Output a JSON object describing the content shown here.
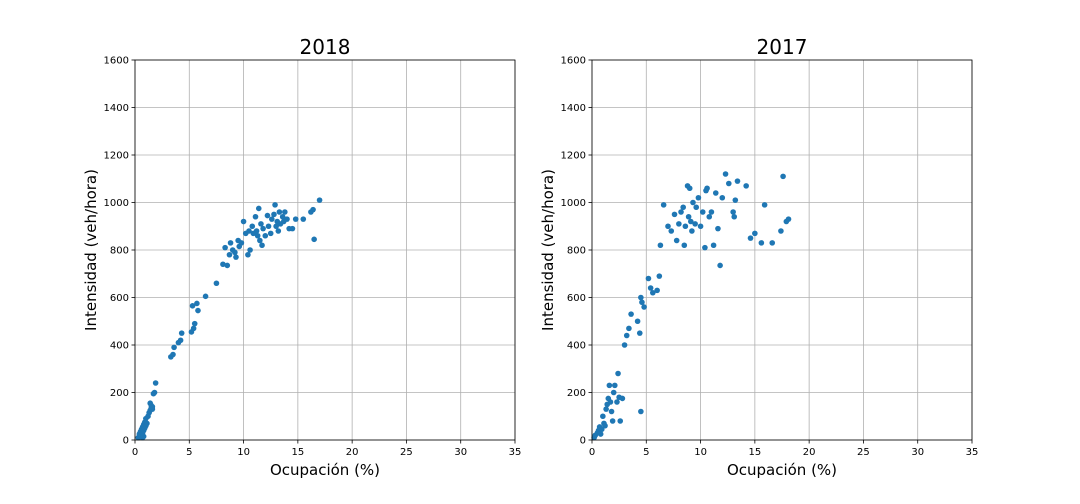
{
  "chart_data": [
    {
      "type": "scatter",
      "title": "2018",
      "xlabel": "Ocupación (%)",
      "ylabel": "Intensidad (veh/hora)",
      "xlim": [
        0,
        35
      ],
      "ylim": [
        0,
        1600
      ],
      "xticks": [
        "0",
        "5",
        "10",
        "15",
        "20",
        "25",
        "30",
        "35"
      ],
      "yticks": [
        "0",
        "200",
        "400",
        "600",
        "800",
        "1000",
        "1200",
        "1400",
        "1600"
      ],
      "grid": true,
      "color": "#1f77b4",
      "points": [
        [
          0.3,
          10
        ],
        [
          0.4,
          25
        ],
        [
          0.5,
          15
        ],
        [
          0.5,
          35
        ],
        [
          0.6,
          20
        ],
        [
          0.6,
          45
        ],
        [
          0.7,
          30
        ],
        [
          0.7,
          55
        ],
        [
          0.8,
          40
        ],
        [
          0.8,
          65
        ],
        [
          0.9,
          50
        ],
        [
          0.9,
          75
        ],
        [
          1.0,
          60
        ],
        [
          1.0,
          90
        ],
        [
          0.7,
          10
        ],
        [
          0.8,
          15
        ],
        [
          1.1,
          70
        ],
        [
          1.2,
          100
        ],
        [
          1.3,
          115
        ],
        [
          1.4,
          125
        ],
        [
          1.5,
          135
        ],
        [
          1.5,
          145
        ],
        [
          1.6,
          130
        ],
        [
          1.4,
          155
        ],
        [
          1.6,
          140
        ],
        [
          1.7,
          195
        ],
        [
          1.8,
          200
        ],
        [
          1.9,
          240
        ],
        [
          3.3,
          350
        ],
        [
          3.5,
          360
        ],
        [
          3.6,
          390
        ],
        [
          4.0,
          410
        ],
        [
          4.2,
          420
        ],
        [
          4.3,
          450
        ],
        [
          5.2,
          455
        ],
        [
          5.4,
          470
        ],
        [
          5.5,
          490
        ],
        [
          5.3,
          565
        ],
        [
          5.7,
          575
        ],
        [
          5.8,
          545
        ],
        [
          6.5,
          605
        ],
        [
          7.5,
          660
        ],
        [
          8.1,
          740
        ],
        [
          8.3,
          810
        ],
        [
          8.5,
          735
        ],
        [
          8.7,
          780
        ],
        [
          8.8,
          830
        ],
        [
          9.0,
          800
        ],
        [
          9.2,
          790
        ],
        [
          9.3,
          770
        ],
        [
          9.5,
          840
        ],
        [
          9.6,
          815
        ],
        [
          9.8,
          830
        ],
        [
          10.0,
          920
        ],
        [
          10.2,
          870
        ],
        [
          10.4,
          780
        ],
        [
          10.5,
          880
        ],
        [
          10.6,
          800
        ],
        [
          10.8,
          900
        ],
        [
          10.9,
          870
        ],
        [
          11.1,
          940
        ],
        [
          11.2,
          880
        ],
        [
          11.3,
          860
        ],
        [
          11.4,
          975
        ],
        [
          11.5,
          840
        ],
        [
          11.6,
          910
        ],
        [
          11.7,
          820
        ],
        [
          11.8,
          890
        ],
        [
          12.0,
          860
        ],
        [
          12.2,
          945
        ],
        [
          12.3,
          900
        ],
        [
          12.5,
          870
        ],
        [
          12.6,
          930
        ],
        [
          12.8,
          950
        ],
        [
          12.9,
          990
        ],
        [
          13.0,
          900
        ],
        [
          13.1,
          920
        ],
        [
          13.2,
          880
        ],
        [
          13.3,
          960
        ],
        [
          13.4,
          910
        ],
        [
          13.6,
          940
        ],
        [
          13.7,
          920
        ],
        [
          13.8,
          960
        ],
        [
          14.0,
          930
        ],
        [
          14.2,
          890
        ],
        [
          14.5,
          890
        ],
        [
          14.8,
          930
        ],
        [
          15.5,
          930
        ],
        [
          16.2,
          960
        ],
        [
          16.4,
          970
        ],
        [
          16.5,
          845
        ],
        [
          17.0,
          1010
        ]
      ]
    },
    {
      "type": "scatter",
      "title": "2017",
      "xlabel": "Ocupación (%)",
      "ylabel": "Intensidad (veh/hora)",
      "xlim": [
        0,
        35
      ],
      "ylim": [
        0,
        1600
      ],
      "xticks": [
        "0",
        "5",
        "10",
        "15",
        "20",
        "25",
        "30",
        "35"
      ],
      "yticks": [
        "0",
        "200",
        "400",
        "600",
        "800",
        "1000",
        "1200",
        "1400",
        "1600"
      ],
      "grid": true,
      "color": "#1f77b4",
      "points": [
        [
          0.2,
          10
        ],
        [
          0.3,
          20
        ],
        [
          0.5,
          30
        ],
        [
          0.6,
          40
        ],
        [
          0.7,
          55
        ],
        [
          0.8,
          25
        ],
        [
          0.9,
          45
        ],
        [
          1.0,
          100
        ],
        [
          1.1,
          70
        ],
        [
          1.2,
          60
        ],
        [
          1.3,
          130
        ],
        [
          1.4,
          150
        ],
        [
          1.5,
          175
        ],
        [
          1.6,
          230
        ],
        [
          1.7,
          160
        ],
        [
          1.8,
          120
        ],
        [
          1.9,
          80
        ],
        [
          2.0,
          200
        ],
        [
          2.1,
          230
        ],
        [
          2.3,
          160
        ],
        [
          2.4,
          280
        ],
        [
          2.5,
          180
        ],
        [
          2.6,
          80
        ],
        [
          2.8,
          175
        ],
        [
          3.0,
          400
        ],
        [
          3.2,
          440
        ],
        [
          3.4,
          470
        ],
        [
          3.6,
          530
        ],
        [
          4.2,
          500
        ],
        [
          4.4,
          450
        ],
        [
          4.5,
          600
        ],
        [
          4.6,
          580
        ],
        [
          4.8,
          560
        ],
        [
          4.5,
          120
        ],
        [
          5.2,
          680
        ],
        [
          5.4,
          640
        ],
        [
          5.6,
          620
        ],
        [
          6.0,
          630
        ],
        [
          6.2,
          690
        ],
        [
          6.3,
          820
        ],
        [
          6.6,
          990
        ],
        [
          7.0,
          900
        ],
        [
          7.3,
          880
        ],
        [
          7.6,
          950
        ],
        [
          7.8,
          840
        ],
        [
          8.0,
          910
        ],
        [
          8.2,
          960
        ],
        [
          8.4,
          980
        ],
        [
          8.5,
          820
        ],
        [
          8.6,
          900
        ],
        [
          8.8,
          1070
        ],
        [
          8.9,
          940
        ],
        [
          9.0,
          1060
        ],
        [
          9.1,
          920
        ],
        [
          9.2,
          880
        ],
        [
          9.3,
          1000
        ],
        [
          9.5,
          910
        ],
        [
          9.6,
          980
        ],
        [
          9.8,
          1020
        ],
        [
          10.0,
          900
        ],
        [
          10.2,
          960
        ],
        [
          10.4,
          810
        ],
        [
          10.5,
          1050
        ],
        [
          10.6,
          1060
        ],
        [
          10.8,
          940
        ],
        [
          11.0,
          960
        ],
        [
          11.2,
          820
        ],
        [
          11.4,
          1040
        ],
        [
          11.6,
          890
        ],
        [
          11.8,
          735
        ],
        [
          12.0,
          1020
        ],
        [
          12.3,
          1120
        ],
        [
          12.6,
          1080
        ],
        [
          13.0,
          960
        ],
        [
          13.1,
          940
        ],
        [
          13.2,
          1010
        ],
        [
          13.4,
          1090
        ],
        [
          14.2,
          1070
        ],
        [
          14.6,
          850
        ],
        [
          15.0,
          870
        ],
        [
          15.6,
          830
        ],
        [
          15.9,
          990
        ],
        [
          16.6,
          830
        ],
        [
          17.4,
          880
        ],
        [
          17.6,
          1110
        ],
        [
          17.9,
          920
        ],
        [
          18.1,
          930
        ]
      ]
    }
  ]
}
